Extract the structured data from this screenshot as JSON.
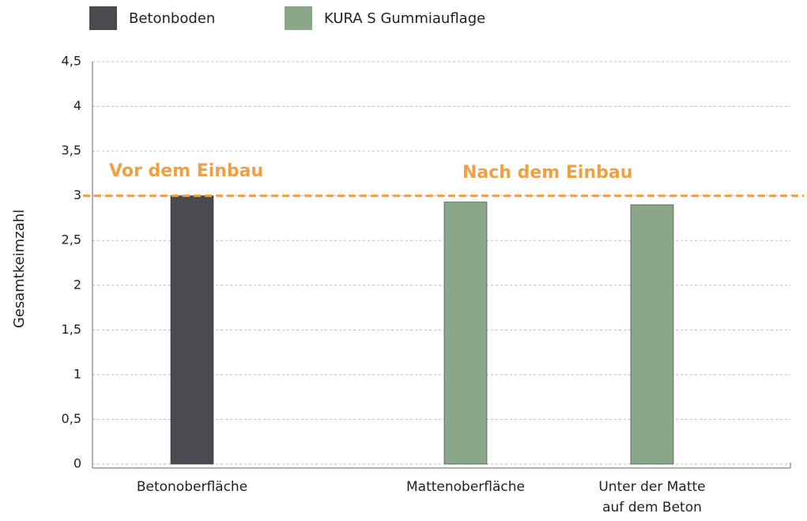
{
  "chart_data": {
    "type": "bar",
    "y_label": "Gesamtkeimzahl",
    "categories": [
      "Betonoberfläche",
      "Mattenoberfläche",
      "Unter der Matte\nauf dem Beton"
    ],
    "series": [
      {
        "name": "Betonboden",
        "color": "#4a4b50",
        "values": [
          3,
          null,
          null
        ]
      },
      {
        "name": "KURA S Gummiauflage",
        "color": "#8aa888",
        "values": [
          null,
          2.93,
          2.9
        ]
      }
    ],
    "ylim": [
      0,
      4.5
    ],
    "yticks": [
      0,
      {
        "value": 0.5,
        "label": "0,5"
      },
      1,
      {
        "value": 1.5,
        "label": "1,5"
      },
      2,
      {
        "value": 2.5,
        "label": "2,5"
      },
      3,
      {
        "value": 3.5,
        "label": "3,5"
      },
      4,
      {
        "value": 4.5,
        "label": "4,5"
      }
    ],
    "grid": true,
    "reference_line": {
      "value": 3,
      "color": "#f0a040"
    },
    "annotations": [
      "Vor dem Einbau",
      "Nach dem Einbau"
    ]
  }
}
